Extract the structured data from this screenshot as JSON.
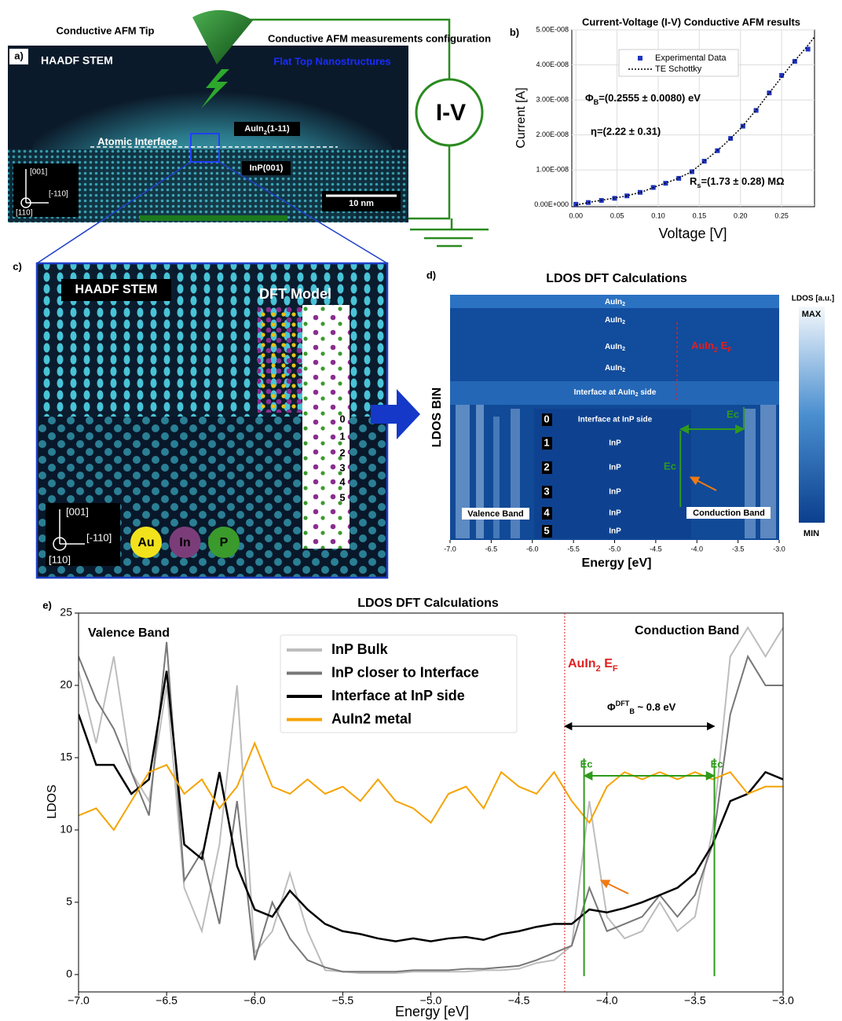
{
  "panel_a": {
    "label": "a)",
    "tip_label": "Conductive AFM Tip",
    "config_label": "Conductive AFM measurements configuration",
    "image_title": "HAADF STEM",
    "image_subtitle": "Flat Top Nanostructures",
    "interface_label": "Atomic Interface",
    "top_layer": [
      {
        "t": "AuIn"
      },
      {
        "sub": "2"
      },
      {
        "t": "(1-11)"
      }
    ],
    "substrate": "InP(001)",
    "scale_bar": "10 nm",
    "directions": [
      "[001]",
      "[-110]",
      "[110]"
    ],
    "iv_label": "I-V"
  },
  "panel_c": {
    "label": "c)",
    "image_title": "HAADF STEM",
    "model_title": "DFT Model",
    "bins": [
      "0",
      "1",
      "2",
      "3",
      "4",
      "5"
    ],
    "directions": [
      "[001]",
      "[-110]",
      "[110]"
    ],
    "elements": [
      {
        "name": "Au",
        "color": "#f2e21c"
      },
      {
        "name": "In",
        "color": "#7b3d79"
      },
      {
        "name": "P",
        "color": "#3b9a2c"
      }
    ]
  },
  "chart_data": [
    {
      "type": "scatter",
      "panel_label": "b)",
      "title": "Current-Voltage (I-V) Conductive AFM results",
      "x_label": "Voltage [V]",
      "y_label": "Current [A]",
      "xlim": [
        -0.005,
        0.29
      ],
      "xticks": [
        {
          "value": 0,
          "label": "0.00"
        },
        0.05,
        {
          "value": 0.1,
          "label": "0.10"
        },
        0.15,
        {
          "value": 0.2,
          "label": "0.20"
        },
        0.25
      ],
      "ylim": [
        -5e-10,
        5e-08
      ],
      "yticks": [
        {
          "value": 0,
          "label": "0.00E+000"
        },
        {
          "value": 1e-08,
          "label": "1.00E-008"
        },
        {
          "value": 2e-08,
          "label": "2.00E-008"
        },
        {
          "value": 3e-08,
          "label": "3.00E-008"
        },
        {
          "value": 4e-08,
          "label": "4.00E-008"
        },
        {
          "value": 5e-08,
          "label": "5.00E-008"
        }
      ],
      "grid": true,
      "series": [
        {
          "name": "Experimental Data",
          "style": "markers",
          "color": "#1f35c0",
          "x": [
            0,
            0.015,
            0.031,
            0.047,
            0.062,
            0.078,
            0.094,
            0.109,
            0.125,
            0.141,
            0.156,
            0.172,
            0.188,
            0.203,
            0.219,
            0.235,
            0.25,
            0.266,
            0.282
          ],
          "values": [
            2e-10,
            7e-10,
            1.3e-09,
            1.9e-09,
            2.6e-09,
            3.6e-09,
            5e-09,
            6.2e-09,
            7.6e-09,
            9.5e-09,
            1.25e-08,
            1.55e-08,
            1.9e-08,
            2.25e-08,
            2.7e-08,
            3.2e-08,
            3.7e-08,
            4.1e-08,
            4.45e-08
          ]
        },
        {
          "name": "TE Schottky",
          "style": "dotted-line",
          "color": "#000000",
          "x": [
            0,
            0.02,
            0.04,
            0.06,
            0.08,
            0.1,
            0.12,
            0.14,
            0.16,
            0.18,
            0.2,
            0.22,
            0.24,
            0.26,
            0.28,
            0.29
          ],
          "values": [
            0,
            9e-10,
            1.7e-09,
            2.5e-09,
            3.7e-09,
            5.5e-09,
            7.2e-09,
            9.4e-09,
            1.32e-08,
            1.72e-08,
            2.18e-08,
            2.74e-08,
            3.35e-08,
            3.95e-08,
            4.5e-08,
            4.8e-08
          ]
        }
      ],
      "annotations": [
        [
          {
            "t": "Φ"
          },
          {
            "sub": "B"
          },
          {
            "t": "=(0.2555 ± 0.0080) eV"
          }
        ],
        "η=(2.22 ± 0.31)",
        [
          {
            "t": "R"
          },
          {
            "sub": "s"
          },
          {
            "t": "=(1.73 ± 0.28) MΩ"
          }
        ]
      ]
    },
    {
      "type": "heatmap",
      "panel_label": "d)",
      "title": "LDOS DFT Calculations",
      "x_label": "Energy [eV]",
      "y_label": "LDOS BIN",
      "xlim": [
        -7,
        -3
      ],
      "xticks": [
        {
          "value": -7,
          "label": "-7.0"
        },
        -6.5,
        {
          "value": -6,
          "label": "-6.0"
        },
        -5.5,
        {
          "value": -5,
          "label": "-5.0"
        },
        -4.5,
        {
          "value": -4,
          "label": "-4.0"
        },
        -3.5,
        {
          "value": -3,
          "label": "-3.0"
        }
      ],
      "rows": [
        [
          {
            "t": "AuIn"
          },
          {
            "sub": "2"
          }
        ],
        [
          {
            "t": "AuIn"
          },
          {
            "sub": "2"
          }
        ],
        [
          {
            "t": "AuIn"
          },
          {
            "sub": "2"
          }
        ],
        [
          {
            "t": "AuIn"
          },
          {
            "sub": "2"
          }
        ],
        [
          {
            "t": "Interface at AuIn"
          },
          {
            "sub": "2"
          },
          {
            "t": " side"
          }
        ],
        "Interface at InP side",
        "InP",
        "InP",
        "InP",
        "InP",
        "InP"
      ],
      "bins": [
        "0",
        "1",
        "2",
        "3",
        "4",
        "5"
      ],
      "fermi_level": -4.24,
      "fermi_label": [
        {
          "t": "AuIn"
        },
        {
          "sub": "2"
        },
        {
          "t": " E"
        },
        {
          "sub": "F"
        }
      ],
      "ec_lines": [
        -4.2,
        -3.43
      ],
      "ec_label": "Ec",
      "band_labels": [
        "Valence Band",
        "Conduction Band"
      ],
      "colorbar_title": "LDOS [a.u.]",
      "colorbar_max": "MAX",
      "colorbar_min": "MIN"
    },
    {
      "type": "line",
      "panel_label": "e)",
      "title": "LDOS DFT Calculations",
      "x_label": "Energy [eV]",
      "y_label": "LDOS",
      "xlim": [
        -7,
        -3
      ],
      "xticks": [
        {
          "value": -7,
          "label": "−7.0"
        },
        {
          "value": -6.5,
          "label": "−6.5"
        },
        {
          "value": -6,
          "label": "−6.0"
        },
        {
          "value": -5.5,
          "label": "−5.5"
        },
        {
          "value": -5,
          "label": "−5.0"
        },
        {
          "value": -4.5,
          "label": "−4.5"
        },
        {
          "value": -4,
          "label": "−4.0"
        },
        {
          "value": -3.5,
          "label": "−3.5"
        },
        {
          "value": -3,
          "label": "−3.0"
        }
      ],
      "ylim": [
        -1.2,
        25
      ],
      "yticks": [
        0,
        5,
        10,
        15,
        20,
        25
      ],
      "x": [
        -7,
        -6.9,
        -6.8,
        -6.7,
        -6.6,
        -6.5,
        -6.4,
        -6.3,
        -6.2,
        -6.1,
        -6,
        -5.9,
        -5.8,
        -5.7,
        -5.6,
        -5.5,
        -5.4,
        -5.3,
        -5.2,
        -5.1,
        -5,
        -4.9,
        -4.8,
        -4.7,
        -4.6,
        -4.5,
        -4.4,
        -4.3,
        -4.2,
        -4.1,
        -4,
        -3.9,
        -3.8,
        -3.7,
        -3.6,
        -3.5,
        -3.4,
        -3.3,
        -3.2,
        -3.1,
        -3
      ],
      "series": [
        {
          "name": "InP Bulk",
          "color": "#bdbdbd",
          "values": [
            21,
            16,
            22,
            14,
            12,
            20,
            6,
            3,
            9,
            20,
            1.5,
            3,
            7,
            3,
            0.3,
            0.2,
            0.1,
            0.1,
            0.1,
            0.2,
            0.2,
            0.2,
            0.2,
            0.3,
            0.3,
            0.4,
            0.8,
            1,
            2,
            12,
            4,
            2.5,
            3,
            5,
            3,
            4,
            10,
            22,
            24,
            22,
            24
          ]
        },
        {
          "name": "InP closer to Interface",
          "color": "#777777",
          "values": [
            22,
            19,
            17,
            14,
            11,
            23,
            6.5,
            8.5,
            3.5,
            12,
            1,
            5,
            2.5,
            1,
            0.5,
            0.2,
            0.2,
            0.2,
            0.2,
            0.3,
            0.3,
            0.3,
            0.4,
            0.4,
            0.5,
            0.6,
            1,
            1.5,
            2,
            6,
            3,
            3.5,
            4,
            5.5,
            4,
            5.5,
            9,
            18,
            22,
            20,
            20
          ]
        },
        {
          "name": "Interface at InP side",
          "color": "#000000",
          "values": [
            18,
            14.5,
            14.5,
            12.5,
            13.5,
            21,
            9,
            8,
            14,
            7.5,
            4.5,
            4,
            5.8,
            4.5,
            3.5,
            3,
            2.8,
            2.5,
            2.3,
            2.5,
            2.3,
            2.5,
            2.6,
            2.4,
            2.8,
            3,
            3.3,
            3.5,
            3.5,
            4.5,
            4.3,
            4.6,
            5,
            5.5,
            6,
            7,
            9,
            12,
            12.5,
            14,
            13.5
          ]
        },
        {
          "name": "AuIn2 metal",
          "color": "#f5a300",
          "values": [
            11,
            11.5,
            10,
            12,
            14,
            14.5,
            12.5,
            13.5,
            11.5,
            13,
            16,
            13,
            12.5,
            13.5,
            12.5,
            13,
            12,
            13.5,
            12,
            11.5,
            10.5,
            12.5,
            13,
            11.5,
            14,
            13,
            12.5,
            14,
            12,
            10.5,
            13,
            14,
            13.5,
            14,
            13.5,
            14,
            13.5,
            14,
            12.5,
            13,
            13
          ]
        }
      ],
      "fermi_level": -4.24,
      "fermi_label": [
        {
          "t": "AuIn"
        },
        {
          "sub": "2"
        },
        {
          "t": " E"
        },
        {
          "sub": "F"
        }
      ],
      "ec_lines": [
        -4.13,
        -3.39
      ],
      "ec_label": "Ec",
      "barrier_label": [
        {
          "t": "Φ"
        },
        {
          "sup": "DFT"
        },
        {
          "sub": "B"
        },
        {
          "t": " ~ 0.8 eV"
        }
      ],
      "band_labels": [
        "Valence Band",
        "Conduction Band"
      ]
    }
  ]
}
